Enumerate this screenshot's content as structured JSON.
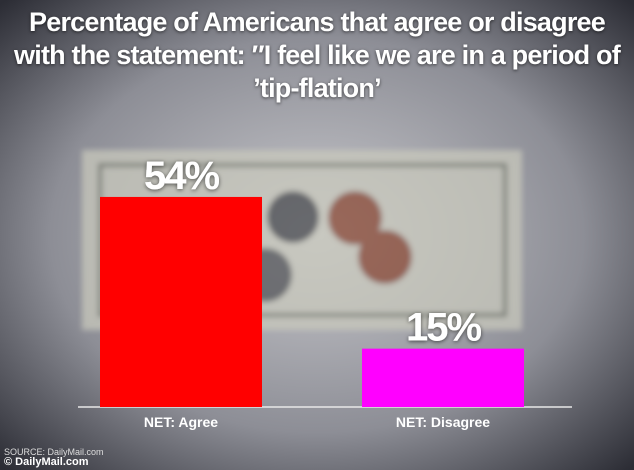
{
  "chart_data": {
    "type": "bar",
    "title": "Percentage of Americans that agree or disagree with the statement: ″I feel like we are in a period of ’tip-flation’",
    "categories": [
      "NET: Agree",
      "NET: Disagree"
    ],
    "values": [
      54,
      15
    ],
    "value_labels": [
      "54%",
      "15%"
    ],
    "colors": [
      "#ff0000",
      "#ff00ff"
    ],
    "source": "SOURCE: DailyMail.com",
    "watermark": "© DailyMail.com"
  }
}
